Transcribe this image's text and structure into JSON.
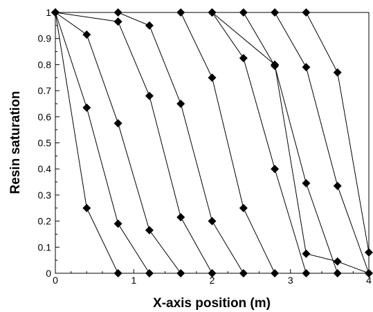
{
  "chart_data": {
    "type": "line",
    "title": "",
    "xlabel": "X-axis position (m)",
    "ylabel": "Resin saturation",
    "xlim": [
      0,
      4
    ],
    "ylim": [
      0,
      1
    ],
    "x_ticks": [
      "0",
      "1",
      "2",
      "3",
      "4"
    ],
    "y_ticks": [
      "0",
      "0.1",
      "0.2",
      "0.3",
      "0.4",
      "0.5",
      "0.6",
      "0.7",
      "0.8",
      "0.9",
      "1"
    ],
    "grid": false,
    "marker": "diamond",
    "series": [
      {
        "points": [
          [
            0,
            1
          ],
          [
            0.4,
            0.25
          ],
          [
            0.8,
            0
          ]
        ]
      },
      {
        "points": [
          [
            0,
            1
          ],
          [
            0.4,
            0.635
          ],
          [
            0.8,
            0.19
          ],
          [
            1.2,
            0
          ]
        ]
      },
      {
        "points": [
          [
            0,
            1
          ],
          [
            0.4,
            0.915
          ],
          [
            0.8,
            0.575
          ],
          [
            1.2,
            0.165
          ],
          [
            1.6,
            0
          ]
        ]
      },
      {
        "points": [
          [
            0,
            1
          ],
          [
            0.8,
            0.965
          ],
          [
            1.2,
            0.68
          ],
          [
            1.6,
            0.215
          ],
          [
            2.0,
            0
          ]
        ]
      },
      {
        "points": [
          [
            0,
            1
          ],
          [
            0.8,
            1
          ],
          [
            1.2,
            0.95
          ],
          [
            1.6,
            0.65
          ],
          [
            2.0,
            0.2
          ],
          [
            2.4,
            0
          ]
        ]
      },
      {
        "points": [
          [
            0,
            1
          ],
          [
            1.6,
            1
          ],
          [
            2.0,
            0.75
          ],
          [
            2.4,
            0.25
          ],
          [
            2.8,
            0
          ]
        ]
      },
      {
        "points": [
          [
            0,
            1
          ],
          [
            2.0,
            1
          ],
          [
            2.4,
            0.825
          ],
          [
            2.8,
            0.4
          ],
          [
            3.2,
            0
          ]
        ]
      },
      {
        "points": [
          [
            0,
            1
          ],
          [
            2.4,
            1
          ],
          [
            2.8,
            0.795
          ],
          [
            3.2,
            0.345
          ],
          [
            3.6,
            0
          ]
        ]
      },
      {
        "points": [
          [
            0,
            1
          ],
          [
            2.8,
            1
          ],
          [
            3.2,
            0.79
          ],
          [
            3.6,
            0.335
          ],
          [
            4.0,
            0
          ]
        ]
      },
      {
        "points": [
          [
            0,
            1
          ],
          [
            3.2,
            1
          ],
          [
            3.6,
            0.77
          ],
          [
            4.0,
            0.08
          ]
        ]
      },
      {
        "points": [
          [
            0,
            1
          ],
          [
            2.0,
            1
          ],
          [
            2.8,
            0.8
          ],
          [
            3.2,
            0.075
          ],
          [
            3.6,
            0.045
          ],
          [
            4.0,
            0
          ]
        ]
      }
    ]
  }
}
